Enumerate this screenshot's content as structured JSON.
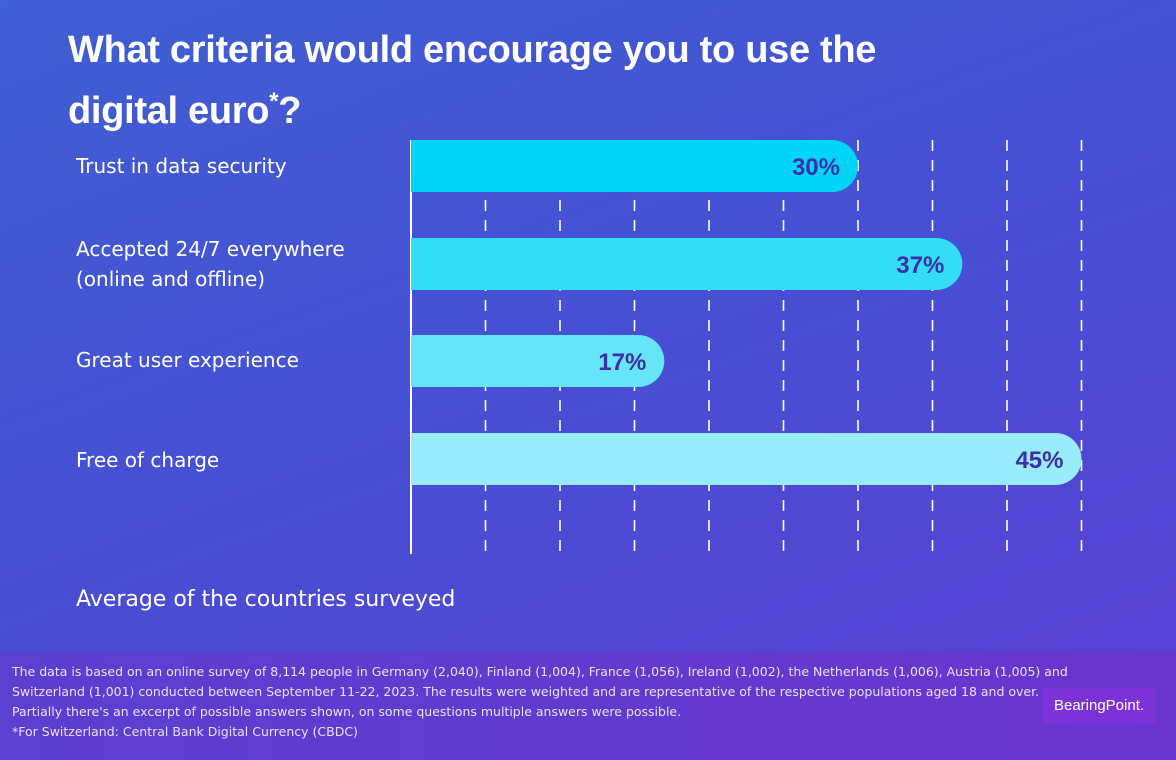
{
  "title": {
    "text": "What criteria would encourage you to use the digital euro",
    "marker": "*",
    "end": "?"
  },
  "chart_data": {
    "type": "bar",
    "orientation": "horizontal",
    "categories": [
      "Trust in data security",
      "Accepted 24/7 everywhere\n(online and offline)",
      "Great user experience",
      "Free of charge"
    ],
    "values": [
      30,
      37,
      17,
      45
    ],
    "value_labels": [
      "30%",
      "37%",
      "17%",
      "45%"
    ],
    "bar_colors": [
      "#00d4f7",
      "#33ddf7",
      "#66e4f8",
      "#99ecfa"
    ],
    "xlim": [
      0,
      45
    ],
    "grid": "dashed vertical lines",
    "xlabel": "",
    "ylabel": ""
  },
  "note": "Average of the countries surveyed",
  "footer": {
    "lines": [
      "The data is based on an online survey of 8,114 people in Germany (2,040), Finland (1,004), France (1,056), Ireland (1,002), the Netherlands (1,006), Austria (1,005) and",
      "Switzerland (1,001) conducted between September 11-22, 2023. The results were weighted and are representative of the respective populations aged 18 and over.",
      "Partially there's an excerpt of possible answers shown, on some questions multiple answers were possible.",
      "*For Switzerland: Central Bank Digital Currency (CBDC)"
    ]
  },
  "logo": {
    "text": "BearingPoint."
  },
  "colors": {
    "value_text": "#3d2fa8",
    "background": "#4650d4"
  }
}
